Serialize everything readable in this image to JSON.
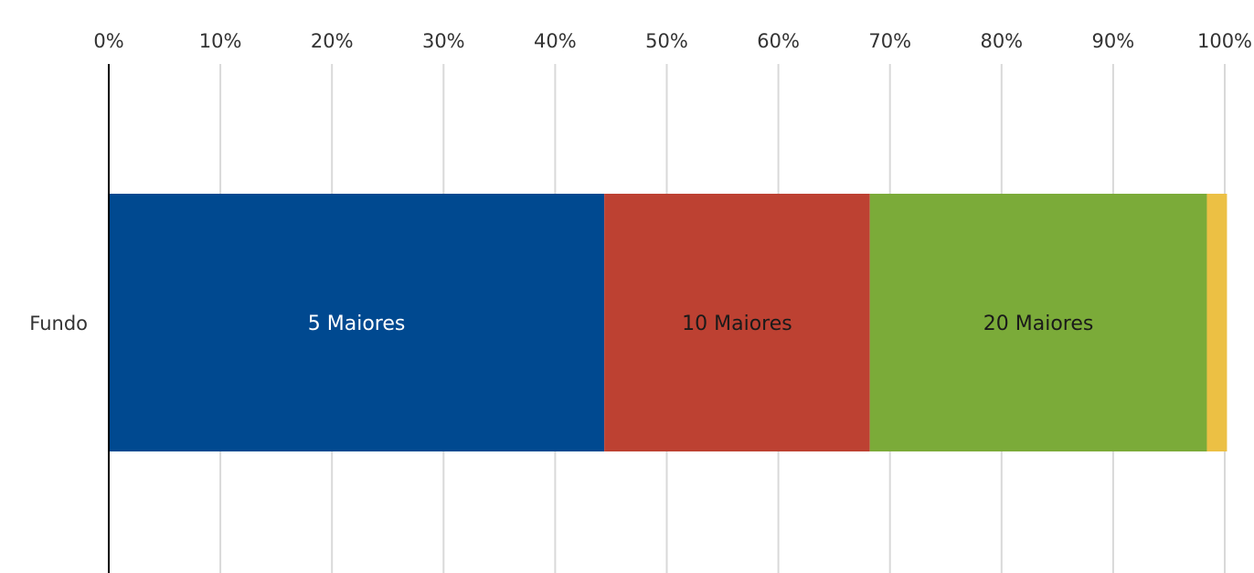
{
  "chart_data": {
    "type": "bar",
    "orientation": "horizontal",
    "stacked": true,
    "categories": [
      "Fundo"
    ],
    "series": [
      {
        "name": "5 Maiores",
        "values": [
          44.4
        ],
        "color": "#004990",
        "label_color": "#ffffff"
      },
      {
        "name": "10 Maiores",
        "values": [
          23.8
        ],
        "color": "#bd4132",
        "label_color": "#1a1a1a"
      },
      {
        "name": "20 Maiores",
        "values": [
          30.2
        ],
        "color": "#7bab39",
        "label_color": "#1a1a1a"
      },
      {
        "name": "",
        "values": [
          1.8
        ],
        "color": "#ecc044",
        "label_color": "#1a1a1a"
      }
    ],
    "xlim": [
      0,
      100
    ],
    "x_ticks": [
      0,
      10,
      20,
      30,
      40,
      50,
      60,
      70,
      80,
      90,
      100
    ],
    "x_tick_labels": [
      "0%",
      "10%",
      "20%",
      "30%",
      "40%",
      "50%",
      "60%",
      "70%",
      "80%",
      "90%",
      "100%"
    ],
    "axis_position": "top",
    "grid": true,
    "title": "",
    "xlabel": "",
    "ylabel": ""
  }
}
